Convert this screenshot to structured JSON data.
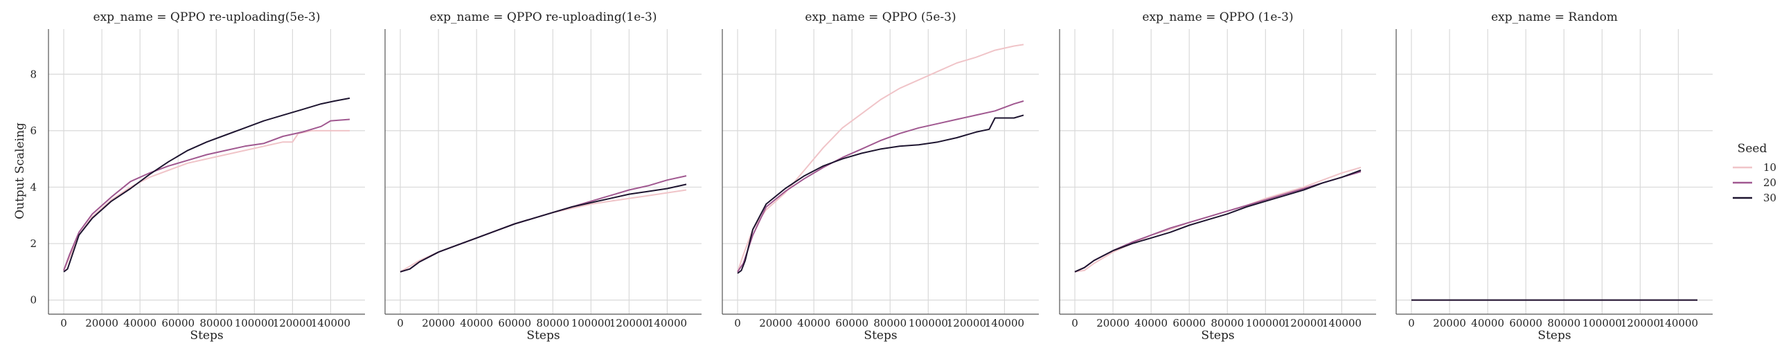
{
  "chart_data": {
    "type": "line",
    "ylabel": "Output Scaleing",
    "xlabel": "Steps",
    "xlim": [
      -8000,
      158000
    ],
    "ylim": [
      -0.5,
      9.6
    ],
    "xticks": [
      0,
      20000,
      40000,
      60000,
      80000,
      100000,
      120000,
      140000
    ],
    "yticks": [
      0,
      2,
      4,
      6,
      8
    ],
    "grid": true,
    "legend": {
      "title": "Seed",
      "position": "right",
      "entries": [
        {
          "label": "10",
          "color": "#f0c4c8"
        },
        {
          "label": "20",
          "color": "#a05890"
        },
        {
          "label": "30",
          "color": "#1e1530"
        }
      ]
    },
    "panels": [
      {
        "title": "exp_name = QPPO re-uploading(5e-3)",
        "series": [
          {
            "seed": "10",
            "x": [
              0,
              3000,
              8000,
              15000,
              25000,
              35000,
              45000,
              55000,
              65000,
              75000,
              85000,
              95000,
              105000,
              115000,
              120000,
              123000,
              130000,
              140000,
              150000
            ],
            "y": [
              1.05,
              1.5,
              2.3,
              2.95,
              3.55,
              4.0,
              4.35,
              4.6,
              4.85,
              5.0,
              5.15,
              5.3,
              5.45,
              5.6,
              5.6,
              5.9,
              6.0,
              6.0,
              6.0
            ]
          },
          {
            "seed": "20",
            "x": [
              0,
              3000,
              8000,
              15000,
              25000,
              35000,
              45000,
              55000,
              65000,
              75000,
              85000,
              95000,
              105000,
              115000,
              125000,
              135000,
              140000,
              150000
            ],
            "y": [
              1.05,
              1.6,
              2.4,
              3.05,
              3.65,
              4.2,
              4.5,
              4.75,
              4.95,
              5.15,
              5.3,
              5.45,
              5.55,
              5.8,
              5.95,
              6.15,
              6.35,
              6.4
            ]
          },
          {
            "seed": "30",
            "x": [
              0,
              2000,
              4000,
              8000,
              15000,
              25000,
              35000,
              45000,
              55000,
              65000,
              75000,
              85000,
              95000,
              105000,
              115000,
              125000,
              135000,
              142000,
              150000
            ],
            "y": [
              1.0,
              1.1,
              1.5,
              2.3,
              2.9,
              3.5,
              3.95,
              4.45,
              4.9,
              5.3,
              5.6,
              5.85,
              6.1,
              6.35,
              6.55,
              6.75,
              6.95,
              7.05,
              7.15
            ]
          }
        ]
      },
      {
        "title": "exp_name = QPPO re-uploading(1e-3)",
        "series": [
          {
            "seed": "10",
            "x": [
              0,
              5000,
              10000,
              20000,
              30000,
              40000,
              50000,
              60000,
              70000,
              80000,
              90000,
              100000,
              110000,
              120000,
              130000,
              140000,
              150000
            ],
            "y": [
              1.0,
              1.2,
              1.4,
              1.7,
              1.95,
              2.2,
              2.45,
              2.7,
              2.9,
              3.1,
              3.25,
              3.4,
              3.5,
              3.6,
              3.7,
              3.8,
              3.9
            ]
          },
          {
            "seed": "20",
            "x": [
              0,
              5000,
              10000,
              20000,
              30000,
              40000,
              50000,
              60000,
              70000,
              80000,
              90000,
              100000,
              110000,
              120000,
              130000,
              140000,
              150000
            ],
            "y": [
              1.0,
              1.1,
              1.35,
              1.7,
              1.95,
              2.2,
              2.45,
              2.7,
              2.9,
              3.1,
              3.3,
              3.5,
              3.7,
              3.9,
              4.05,
              4.25,
              4.4
            ]
          },
          {
            "seed": "30",
            "x": [
              0,
              5000,
              10000,
              20000,
              30000,
              40000,
              50000,
              60000,
              70000,
              80000,
              90000,
              100000,
              110000,
              120000,
              130000,
              140000,
              150000
            ],
            "y": [
              1.0,
              1.1,
              1.35,
              1.7,
              1.95,
              2.2,
              2.45,
              2.7,
              2.9,
              3.1,
              3.3,
              3.45,
              3.6,
              3.75,
              3.85,
              3.95,
              4.1
            ]
          }
        ]
      },
      {
        "title": "exp_name = QPPO (5e-3)",
        "series": [
          {
            "seed": "10",
            "x": [
              0,
              3000,
              8000,
              15000,
              25000,
              35000,
              45000,
              55000,
              65000,
              75000,
              85000,
              95000,
              105000,
              115000,
              125000,
              135000,
              145000,
              150000
            ],
            "y": [
              1.0,
              1.6,
              2.5,
              3.2,
              3.8,
              4.6,
              5.4,
              6.1,
              6.6,
              7.1,
              7.5,
              7.8,
              8.1,
              8.4,
              8.6,
              8.85,
              9.0,
              9.05
            ]
          },
          {
            "seed": "20",
            "x": [
              0,
              3000,
              8000,
              15000,
              25000,
              35000,
              45000,
              55000,
              65000,
              75000,
              85000,
              95000,
              105000,
              115000,
              125000,
              135000,
              145000,
              150000
            ],
            "y": [
              1.0,
              1.3,
              2.3,
              3.3,
              3.85,
              4.3,
              4.7,
              5.05,
              5.35,
              5.65,
              5.9,
              6.1,
              6.25,
              6.4,
              6.55,
              6.7,
              6.95,
              7.05
            ]
          },
          {
            "seed": "30",
            "x": [
              0,
              2000,
              4000,
              8000,
              15000,
              25000,
              35000,
              45000,
              55000,
              65000,
              75000,
              85000,
              95000,
              105000,
              115000,
              125000,
              132000,
              135000,
              145000,
              150000
            ],
            "y": [
              0.95,
              1.05,
              1.4,
              2.5,
              3.4,
              3.95,
              4.4,
              4.75,
              5.0,
              5.2,
              5.35,
              5.45,
              5.5,
              5.6,
              5.75,
              5.95,
              6.05,
              6.45,
              6.45,
              6.55
            ]
          }
        ]
      },
      {
        "title": "exp_name = QPPO (1e-3)",
        "series": [
          {
            "seed": "10",
            "x": [
              0,
              5000,
              10000,
              20000,
              30000,
              40000,
              50000,
              60000,
              70000,
              80000,
              90000,
              100000,
              110000,
              120000,
              130000,
              140000,
              150000
            ],
            "y": [
              1.0,
              1.05,
              1.3,
              1.7,
              2.0,
              2.3,
              2.5,
              2.75,
              2.95,
              3.15,
              3.35,
              3.6,
              3.8,
              4.0,
              4.25,
              4.5,
              4.7
            ]
          },
          {
            "seed": "20",
            "x": [
              0,
              5000,
              10000,
              20000,
              30000,
              40000,
              50000,
              60000,
              70000,
              80000,
              90000,
              100000,
              110000,
              120000,
              130000,
              140000,
              150000
            ],
            "y": [
              1.0,
              1.15,
              1.4,
              1.75,
              2.05,
              2.3,
              2.55,
              2.75,
              2.95,
              3.15,
              3.35,
              3.55,
              3.75,
              3.95,
              4.15,
              4.35,
              4.55
            ]
          },
          {
            "seed": "30",
            "x": [
              0,
              5000,
              10000,
              20000,
              30000,
              40000,
              50000,
              60000,
              70000,
              80000,
              90000,
              100000,
              110000,
              120000,
              130000,
              140000,
              150000
            ],
            "y": [
              1.0,
              1.15,
              1.4,
              1.75,
              2.0,
              2.2,
              2.4,
              2.65,
              2.85,
              3.05,
              3.3,
              3.5,
              3.7,
              3.9,
              4.15,
              4.35,
              4.6
            ]
          }
        ]
      },
      {
        "title": "exp_name = Random",
        "series": [
          {
            "seed": "10",
            "x": [
              0,
              150000
            ],
            "y": [
              0,
              0
            ]
          },
          {
            "seed": "20",
            "x": [
              0,
              150000
            ],
            "y": [
              0,
              0
            ]
          },
          {
            "seed": "30",
            "x": [
              0,
              150000
            ],
            "y": [
              0,
              0
            ]
          }
        ]
      }
    ]
  }
}
